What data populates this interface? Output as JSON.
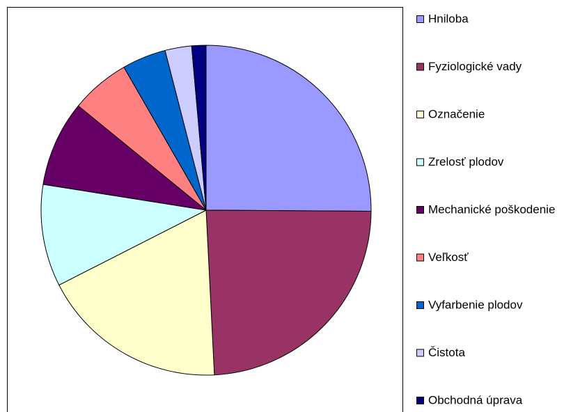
{
  "chart_data": {
    "type": "pie",
    "categories": [
      "Hniloba",
      "Fyziologické vady",
      "Označenie",
      "Zrelosť plodov",
      "Mechanické poškodenie",
      "Veľkosť",
      "Vyfarbenie plodov",
      "Čistota",
      "Obchodná úprava"
    ],
    "values": [
      25.1,
      24.1,
      18.3,
      10,
      8.4,
      5.8,
      4.3,
      2.6,
      1.4
    ],
    "colors": [
      "#9999ff",
      "#993366",
      "#ffffcc",
      "#ccffff",
      "#660066",
      "#ff8080",
      "#0066cc",
      "#ccccff",
      "#000080"
    ],
    "legend": "right"
  }
}
